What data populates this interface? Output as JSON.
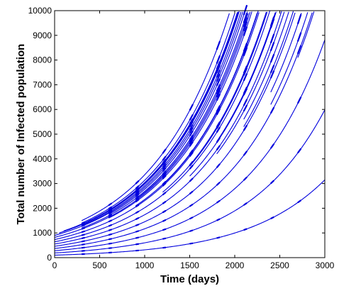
{
  "chart_data": {
    "type": "line",
    "title": "",
    "xlabel": "Time (days)",
    "ylabel": "Total number of Infected population",
    "xlim": [
      0,
      3000
    ],
    "ylim": [
      0,
      10000
    ],
    "xticks": [
      0,
      500,
      1000,
      1500,
      2000,
      2500,
      3000
    ],
    "yticks": [
      0,
      1000,
      2000,
      3000,
      4000,
      5000,
      6000,
      7000,
      8000,
      9000,
      10000
    ],
    "grid": false,
    "legend": "none",
    "line_color": "#0000dd",
    "dash_every_days": 300,
    "growth_rate_per_day": 0.00115,
    "series": [
      {
        "start": [
          0,
          100
        ]
      },
      {
        "start": [
          0,
          190
        ]
      },
      {
        "start": [
          0,
          280
        ]
      },
      {
        "start": [
          0,
          370
        ]
      },
      {
        "start": [
          0,
          460
        ]
      },
      {
        "start": [
          0,
          550
        ]
      },
      {
        "start": [
          0,
          640
        ]
      },
      {
        "start": [
          0,
          730
        ]
      },
      {
        "start": [
          0,
          820
        ]
      },
      {
        "start": [
          0,
          900
        ]
      },
      {
        "start": [
          50,
          1000
        ]
      },
      {
        "start": [
          100,
          1080
        ]
      },
      {
        "start": [
          300,
          1200
        ]
      },
      {
        "start": [
          300,
          1300
        ]
      },
      {
        "start": [
          300,
          1400
        ]
      },
      {
        "start": [
          300,
          1500
        ]
      },
      {
        "start": [
          600,
          1600
        ]
      },
      {
        "start": [
          600,
          1750
        ]
      },
      {
        "start": [
          600,
          1900
        ]
      },
      {
        "start": [
          900,
          2100
        ]
      },
      {
        "start": [
          900,
          2350
        ]
      },
      {
        "start": [
          1200,
          2650
        ]
      },
      {
        "start": [
          1200,
          2950
        ]
      },
      {
        "start": [
          1500,
          3300
        ]
      },
      {
        "start": [
          1500,
          3700
        ]
      },
      {
        "start": [
          1800,
          4200
        ]
      },
      {
        "start": [
          1800,
          4700
        ]
      },
      {
        "start": [
          2100,
          5300
        ]
      },
      {
        "start": [
          2100,
          5600
        ]
      },
      {
        "start": [
          2400,
          6200
        ]
      },
      {
        "start": [
          2400,
          6700
        ]
      },
      {
        "start": [
          2700,
          8100
        ]
      }
    ]
  }
}
